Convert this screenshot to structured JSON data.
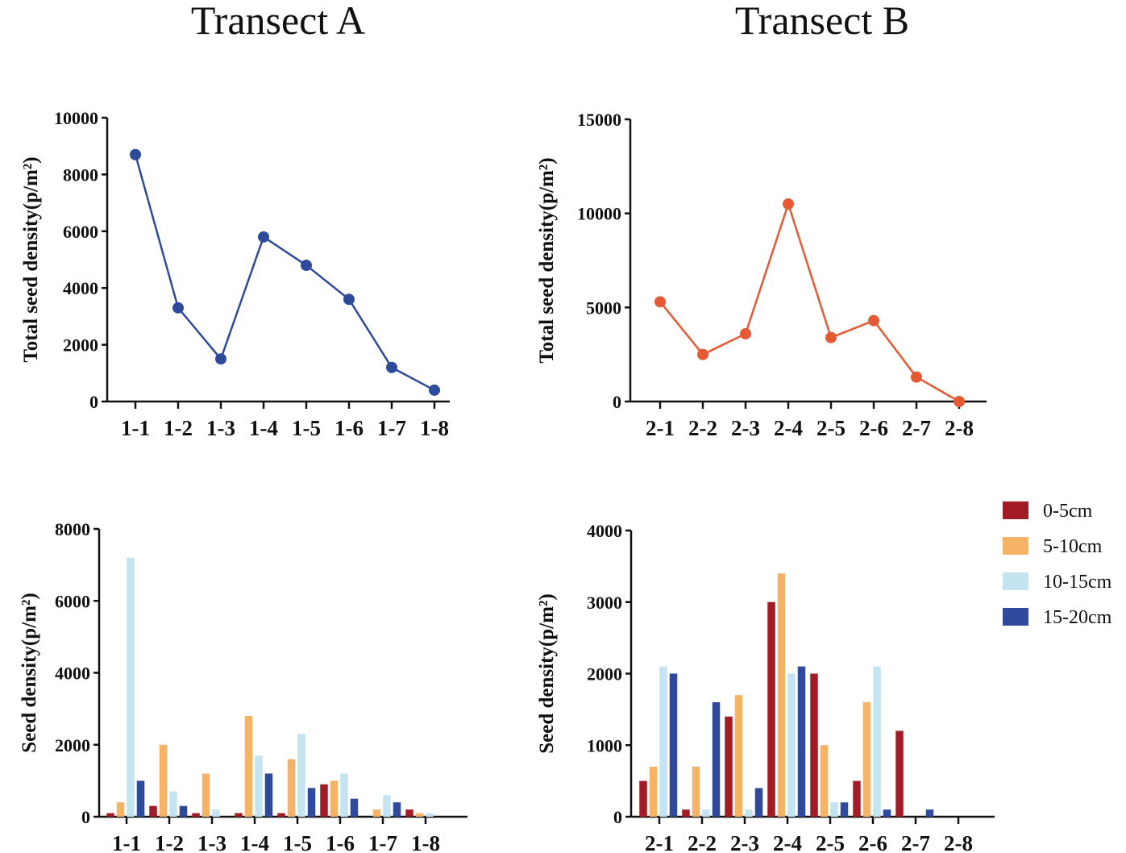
{
  "titles": {
    "left": "Transect  A",
    "right": "Transect  B"
  },
  "colors": {
    "line_a": "#2e4b9b",
    "line_b": "#e55a33",
    "d0_5": "#a31c25",
    "d5_10": "#f6b366",
    "d10_15": "#c4e4f2",
    "d15_20": "#2f4a9c",
    "axis": "#111111"
  },
  "chart_data": [
    {
      "panel": "A",
      "type": "line",
      "title": "",
      "xlabel": "",
      "ylabel": "Total seed density(p/m²)",
      "categories": [
        "1-1",
        "1-2",
        "1-3",
        "1-4",
        "1-5",
        "1-6",
        "1-7",
        "1-8"
      ],
      "values": [
        8700,
        3300,
        1500,
        5800,
        4800,
        3600,
        1200,
        400
      ],
      "ylim": [
        0,
        10000
      ],
      "yticks": [
        0,
        2000,
        4000,
        6000,
        8000,
        10000
      ],
      "color": "#2e4b9b"
    },
    {
      "panel": "B",
      "type": "line",
      "title": "",
      "xlabel": "",
      "ylabel": "Total seed density(p/m²)",
      "categories": [
        "2-1",
        "2-2",
        "2-3",
        "2-4",
        "2-5",
        "2-6",
        "2-7",
        "2-8"
      ],
      "values": [
        5300,
        2500,
        3600,
        10500,
        3400,
        4300,
        1300,
        0
      ],
      "ylim": [
        0,
        15000
      ],
      "yticks": [
        0,
        5000,
        10000,
        15000
      ],
      "color": "#e55a33"
    },
    {
      "panel": "C",
      "type": "bar",
      "title": "",
      "xlabel": "",
      "ylabel": "Seed density(p/m²)",
      "categories": [
        "1-1",
        "1-2",
        "1-3",
        "1-4",
        "1-5",
        "1-6",
        "1-7",
        "1-8"
      ],
      "series": [
        {
          "name": "0-5cm",
          "values": [
            100,
            300,
            100,
            100,
            100,
            900,
            0,
            200
          ]
        },
        {
          "name": "5-10cm",
          "values": [
            400,
            2000,
            1200,
            2800,
            1600,
            1000,
            200,
            100
          ]
        },
        {
          "name": "10-15cm",
          "values": [
            7200,
            700,
            200,
            1700,
            2300,
            1200,
            600,
            100
          ]
        },
        {
          "name": "15-20cm",
          "values": [
            1000,
            300,
            0,
            1200,
            800,
            500,
            400,
            0
          ]
        }
      ],
      "ylim": [
        0,
        8000
      ],
      "yticks": [
        0,
        2000,
        4000,
        6000,
        8000
      ]
    },
    {
      "panel": "D",
      "type": "bar",
      "title": "",
      "xlabel": "",
      "ylabel": "Seed density(p/m²)",
      "categories": [
        "2-1",
        "2-2",
        "2-3",
        "2-4",
        "2-5",
        "2-6",
        "2-7",
        "2-8"
      ],
      "series": [
        {
          "name": "0-5cm",
          "values": [
            500,
            100,
            1400,
            3000,
            2000,
            500,
            1200,
            0
          ]
        },
        {
          "name": "5-10cm",
          "values": [
            700,
            700,
            1700,
            3400,
            1000,
            1600,
            0,
            0
          ]
        },
        {
          "name": "10-15cm",
          "values": [
            2100,
            100,
            100,
            2000,
            200,
            2100,
            0,
            0
          ]
        },
        {
          "name": "15-20cm",
          "values": [
            2000,
            1600,
            400,
            2100,
            200,
            100,
            100,
            0
          ]
        }
      ],
      "ylim": [
        0,
        4000
      ],
      "yticks": [
        0,
        1000,
        2000,
        3000,
        4000
      ],
      "legend": [
        "0-5cm",
        "5-10cm",
        "10-15cm",
        "15-20cm"
      ]
    }
  ]
}
